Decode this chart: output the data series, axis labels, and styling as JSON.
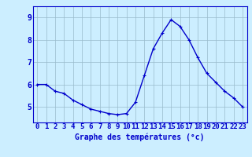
{
  "x": [
    0,
    1,
    2,
    3,
    4,
    5,
    6,
    7,
    8,
    9,
    10,
    11,
    12,
    13,
    14,
    15,
    16,
    17,
    18,
    19,
    20,
    21,
    22,
    23
  ],
  "y": [
    6.0,
    6.0,
    5.7,
    5.6,
    5.3,
    5.1,
    4.9,
    4.8,
    4.7,
    4.65,
    4.7,
    5.2,
    6.4,
    7.6,
    8.3,
    8.9,
    8.6,
    8.0,
    7.2,
    6.5,
    6.1,
    5.7,
    5.4,
    5.0
  ],
  "line_color": "#0000cc",
  "marker": "+",
  "marker_size": 3,
  "background_color": "#cceeff",
  "grid_color": "#99bbcc",
  "axis_color": "#0000cc",
  "xlabel": "Graphe des températures (°c)",
  "xlabel_fontsize": 7,
  "xtick_labels": [
    "0",
    "1",
    "2",
    "3",
    "4",
    "5",
    "6",
    "7",
    "8",
    "9",
    "10",
    "11",
    "12",
    "13",
    "14",
    "15",
    "16",
    "17",
    "18",
    "19",
    "20",
    "21",
    "22",
    "23"
  ],
  "ytick_labels": [
    "5",
    "6",
    "7",
    "8",
    "9"
  ],
  "yticks": [
    5,
    6,
    7,
    8,
    9
  ],
  "ylim": [
    4.3,
    9.5
  ],
  "xlim": [
    -0.5,
    23.5
  ],
  "tick_color": "#0000cc",
  "tick_fontsize": 6.5,
  "spine_color": "#0000cc",
  "linewidth": 1.0
}
